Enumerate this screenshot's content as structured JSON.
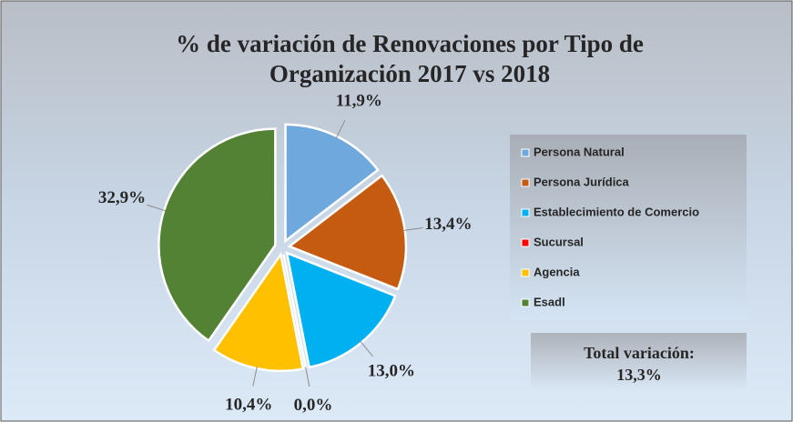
{
  "chart_data": {
    "type": "pie",
    "title": [
      "% de variación de Renovaciones por Tipo de",
      "Organización 2017 vs 2018"
    ],
    "categories": [
      "Persona Natural",
      "Persona Jurídica",
      "Establecimiento de Comercio",
      "Sucursal",
      "Agencia",
      "Esadl"
    ],
    "values": [
      11.9,
      13.4,
      13.0,
      0.0,
      10.4,
      32.9
    ],
    "value_labels": [
      "11,9%",
      "13,4%",
      "13,0%",
      "0,0%",
      "10,4%",
      "32,9%"
    ],
    "colors": [
      "#6fa8dc",
      "#c55a11",
      "#00b0f0",
      "#ff0000",
      "#ffc000",
      "#548235"
    ],
    "legend": "right",
    "annotation": [
      "Total variación:",
      "13,3%"
    ]
  }
}
